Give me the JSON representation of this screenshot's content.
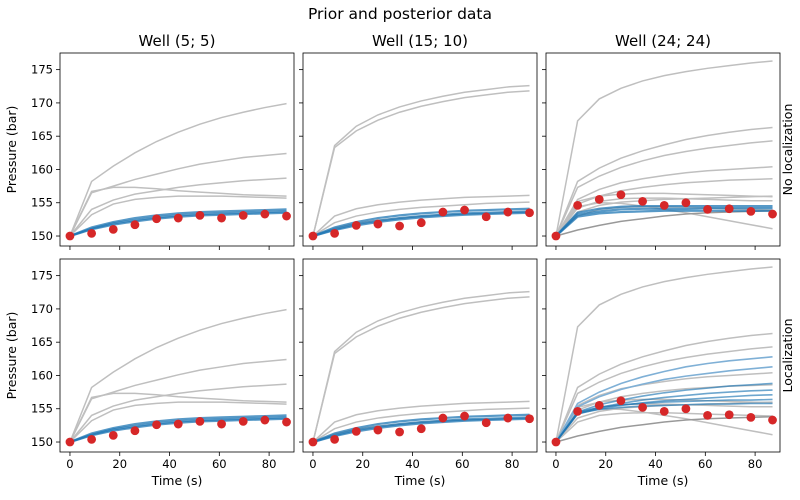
{
  "suptitle": "Prior and posterior data",
  "chart_data": {
    "type": "line",
    "xlim": [
      -4,
      90
    ],
    "ylim": [
      148.5,
      177.5
    ],
    "xticks": [
      0,
      20,
      40,
      60,
      80
    ],
    "yticks": [
      150,
      155,
      160,
      165,
      170,
      175
    ],
    "xlabel": "Time (s)",
    "ylabel": "Pressure (bar)",
    "col_titles": [
      "Well (5; 5)",
      "Well (15; 10)",
      "Well (24; 24)"
    ],
    "row_labels": [
      "No localization",
      "Localization"
    ],
    "times": [
      0,
      8.7,
      17.4,
      26.1,
      34.8,
      43.5,
      52.2,
      60.9,
      69.6,
      78.3,
      87
    ],
    "colors": {
      "prior": "#bfbfbf",
      "prior_dark": "#999999",
      "posterior": "#1f77b4",
      "posterior_light": "#7fb0d6",
      "observed": "#d62728"
    },
    "wells": [
      {
        "observed": [
          150,
          150.4,
          151,
          151.7,
          152.6,
          152.7,
          153.1,
          152.7,
          153.1,
          153.3,
          153
        ],
        "prior": [
          [
            150,
            158.2,
            160.5,
            162.5,
            164.2,
            165.6,
            166.8,
            167.8,
            168.6,
            169.3,
            169.9
          ],
          [
            150,
            156.5,
            157.5,
            158.5,
            159.3,
            160.1,
            160.8,
            161.3,
            161.8,
            162.1,
            162.4
          ],
          [
            150,
            156.7,
            157.3,
            157.3,
            157.1,
            156.8,
            156.6,
            156.4,
            156.2,
            156.1,
            156
          ],
          [
            150,
            154,
            155.4,
            156.3,
            156.8,
            157.3,
            157.7,
            158,
            158.3,
            158.5,
            158.7
          ],
          [
            150,
            153.2,
            154.8,
            155.5,
            155.8,
            156,
            156,
            156,
            155.9,
            155.8,
            155.7
          ]
        ],
        "posterior_norm": [
          [
            150,
            151.1,
            151.9,
            152.4,
            152.8,
            153.1,
            153.3,
            153.4,
            153.5,
            153.6,
            153.7
          ],
          [
            150,
            151.3,
            152.1,
            152.7,
            153.1,
            153.4,
            153.6,
            153.7,
            153.8,
            153.9,
            154
          ],
          [
            150,
            151,
            151.7,
            152.2,
            152.6,
            152.9,
            153.1,
            153.2,
            153.3,
            153.4,
            153.5
          ]
        ],
        "posterior_loc": [
          [
            150,
            151.1,
            151.9,
            152.4,
            152.8,
            153.1,
            153.3,
            153.4,
            153.5,
            153.6,
            153.7
          ],
          [
            150,
            151.3,
            152.1,
            152.7,
            153.1,
            153.4,
            153.6,
            153.7,
            153.8,
            153.9,
            154
          ],
          [
            150,
            151,
            151.7,
            152.2,
            152.6,
            152.9,
            153.1,
            153.2,
            153.3,
            153.4,
            153.5
          ]
        ],
        "posterior_loc_light": []
      },
      {
        "observed": [
          150,
          150.4,
          151.6,
          151.8,
          151.5,
          152,
          153.6,
          153.9,
          152.9,
          153.6,
          153.5
        ],
        "prior": [
          [
            150,
            163.6,
            166.5,
            168.2,
            169.4,
            170.3,
            171,
            171.6,
            172,
            172.4,
            172.6
          ],
          [
            150,
            163.3,
            165.8,
            167.4,
            168.6,
            169.5,
            170.2,
            170.8,
            171.2,
            171.6,
            171.8
          ],
          [
            150,
            153,
            154.1,
            154.7,
            155.1,
            155.4,
            155.6,
            155.8,
            155.9,
            156,
            156.1
          ],
          [
            150,
            152,
            153,
            153.6,
            154,
            154.3,
            154.5,
            154.7,
            154.9,
            155,
            155.1
          ],
          [
            150,
            151.2,
            151.9,
            152.4,
            152.7,
            153,
            153.2,
            153.3,
            153.4,
            153.5,
            153.6
          ]
        ],
        "posterior_norm": [
          [
            150,
            151,
            151.8,
            152.3,
            152.7,
            153,
            153.2,
            153.4,
            153.5,
            153.6,
            153.7
          ],
          [
            150,
            151.3,
            152.1,
            152.7,
            153.1,
            153.4,
            153.6,
            153.8,
            153.9,
            154,
            154.1
          ],
          [
            150,
            150.9,
            151.6,
            152.1,
            152.5,
            152.8,
            153,
            153.2,
            153.3,
            153.4,
            153.5
          ]
        ],
        "posterior_loc": [
          [
            150,
            151,
            151.8,
            152.3,
            152.7,
            153,
            153.2,
            153.4,
            153.5,
            153.6,
            153.7
          ],
          [
            150,
            151.3,
            152.1,
            152.7,
            153.1,
            153.4,
            153.6,
            153.8,
            153.9,
            154,
            154.1
          ],
          [
            150,
            150.9,
            151.6,
            152.1,
            152.5,
            152.8,
            153,
            153.2,
            153.3,
            153.4,
            153.5
          ]
        ],
        "posterior_loc_light": []
      },
      {
        "observed": [
          150,
          154.6,
          155.5,
          156.2,
          155.2,
          154.6,
          155,
          154,
          154.1,
          153.7,
          153.3
        ],
        "prior": [
          [
            150,
            167.3,
            170.6,
            172.2,
            173.3,
            174.1,
            174.7,
            175.2,
            175.6,
            176,
            176.3
          ],
          [
            150,
            158.2,
            160.2,
            161.7,
            162.8,
            163.7,
            164.5,
            165.1,
            165.6,
            166,
            166.3
          ],
          [
            150,
            157.3,
            159,
            160.3,
            161.3,
            162.1,
            162.7,
            163.2,
            163.6,
            164,
            164.3
          ],
          [
            150,
            155.5,
            157,
            158,
            158.6,
            159.1,
            159.5,
            159.8,
            160,
            160.2,
            160.4
          ],
          [
            150,
            154.8,
            156,
            156.8,
            157.3,
            157.7,
            158,
            158.2,
            158.4,
            158.5,
            158.6
          ],
          [
            150,
            155.2,
            156,
            156.3,
            156.4,
            156.4,
            156.3,
            156.2,
            156.1,
            156,
            155.9
          ],
          [
            150,
            154.2,
            155.2,
            155.6,
            155.7,
            155.7,
            155.6,
            155.5,
            155.4,
            155.3,
            155.3
          ],
          [
            150,
            153.6,
            154.6,
            155.1,
            155.3,
            155.5,
            155.6,
            155.7,
            155.8,
            155.9,
            156
          ],
          [
            150,
            154.4,
            155,
            154.9,
            154.5,
            154,
            153.5,
            152.9,
            152.3,
            151.7,
            151.1
          ],
          [
            150,
            153,
            154,
            154.3,
            154.4,
            154.4,
            154.3,
            154.2,
            154.1,
            154,
            153.9
          ]
        ],
        "prior_dark": [
          [
            150,
            150.9,
            151.6,
            152.2,
            152.6,
            153,
            153.3,
            153.5,
            153.6,
            153.7,
            153.8
          ]
        ],
        "posterior_norm": [
          [
            150,
            153.2,
            153.7,
            154,
            154.1,
            154.1,
            154.1,
            154.2,
            154.2,
            154.2,
            154.2
          ],
          [
            150,
            153.5,
            154.1,
            154.4,
            154.5,
            154.5,
            154.5,
            154.5,
            154.5,
            154.5,
            154.5
          ],
          [
            150,
            152.9,
            153.4,
            153.6,
            153.7,
            153.8,
            153.8,
            153.8,
            153.8,
            153.8,
            153.8
          ]
        ],
        "posterior_loc": [
          [
            150,
            154.5,
            155.6,
            156.3,
            156.9,
            157.4,
            157.8,
            158.1,
            158.4,
            158.6,
            158.8
          ],
          [
            150,
            154.3,
            155.2,
            155.8,
            156.3,
            156.7,
            157,
            157.3,
            157.5,
            157.7,
            157.8
          ],
          [
            150,
            154.2,
            155,
            155.5,
            155.9,
            156.2,
            156.4,
            156.6,
            156.8,
            157,
            157.1
          ],
          [
            150,
            154.5,
            155.2,
            155.6,
            155.8,
            156,
            156.1,
            156.2,
            156.3,
            156.3,
            156.4
          ],
          [
            150,
            154.3,
            154.9,
            155.2,
            155.4,
            155.5,
            155.6,
            155.7,
            155.7,
            155.8,
            155.8
          ]
        ],
        "posterior_loc_light": [
          [
            150,
            155.8,
            157.5,
            158.8,
            159.8,
            160.6,
            161.3,
            161.8,
            162.2,
            162.5,
            162.8
          ],
          [
            150,
            155.3,
            156.8,
            157.9,
            158.7,
            159.4,
            159.9,
            160.3,
            160.7,
            161,
            161.3
          ]
        ]
      }
    ]
  }
}
